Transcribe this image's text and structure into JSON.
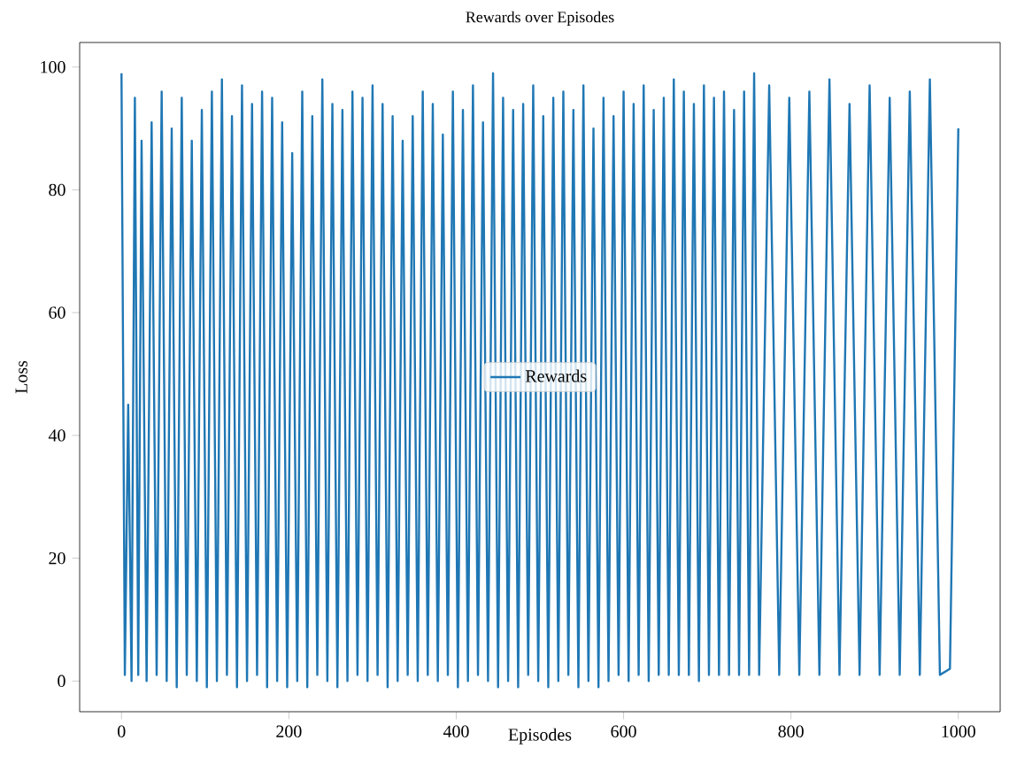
{
  "chart_data": {
    "type": "line",
    "title": "Rewards over Episodes",
    "xlabel": "Episodes",
    "ylabel": "Loss",
    "x": [
      0,
      4,
      8,
      12,
      16,
      20,
      24,
      30,
      36,
      42,
      48,
      54,
      60,
      66,
      72,
      78,
      84,
      90,
      96,
      102,
      108,
      114,
      120,
      126,
      132,
      138,
      144,
      150,
      156,
      162,
      168,
      174,
      180,
      186,
      192,
      198,
      204,
      210,
      216,
      222,
      228,
      234,
      240,
      246,
      252,
      258,
      264,
      270,
      276,
      282,
      288,
      294,
      300,
      306,
      312,
      318,
      324,
      330,
      336,
      342,
      348,
      354,
      360,
      366,
      372,
      378,
      384,
      390,
      396,
      402,
      408,
      414,
      420,
      426,
      432,
      438,
      444,
      450,
      456,
      462,
      468,
      474,
      480,
      486,
      492,
      498,
      504,
      510,
      516,
      522,
      528,
      534,
      540,
      546,
      552,
      558,
      564,
      570,
      576,
      582,
      588,
      594,
      600,
      606,
      612,
      618,
      624,
      630,
      636,
      642,
      648,
      654,
      660,
      666,
      672,
      678,
      684,
      690,
      696,
      702,
      708,
      714,
      720,
      726,
      732,
      738,
      744,
      750,
      756,
      762,
      774,
      786,
      798,
      810,
      822,
      834,
      846,
      858,
      870,
      882,
      894,
      906,
      918,
      930,
      942,
      954,
      966,
      978,
      990,
      1000
    ],
    "series": [
      {
        "name": "Rewards",
        "color": "#1f77b4",
        "values": [
          99,
          1,
          45,
          0,
          95,
          1,
          88,
          0,
          91,
          1,
          96,
          0,
          90,
          -1,
          95,
          1,
          88,
          0,
          93,
          -1,
          96,
          0,
          98,
          1,
          92,
          -1,
          97,
          0,
          94,
          1,
          96,
          -1,
          95,
          0,
          91,
          -1,
          86,
          0,
          96,
          -1,
          92,
          1,
          98,
          0,
          94,
          -1,
          93,
          0,
          96,
          1,
          95,
          0,
          97,
          1,
          94,
          -1,
          92,
          0,
          88,
          1,
          92,
          0,
          96,
          1,
          94,
          0,
          89,
          1,
          96,
          -1,
          93,
          0,
          97,
          1,
          91,
          0,
          99,
          -1,
          95,
          0,
          93,
          -1,
          94,
          1,
          97,
          0,
          92,
          -1,
          95,
          0,
          96,
          1,
          93,
          -1,
          97,
          0,
          90,
          -1,
          95,
          0,
          92,
          1,
          96,
          0,
          94,
          1,
          97,
          0,
          93,
          1,
          95,
          1,
          98,
          1,
          96,
          1,
          94,
          0,
          97,
          1,
          95,
          1,
          96,
          1,
          93,
          1,
          96,
          1,
          99,
          1,
          97,
          1,
          95,
          1,
          96,
          1,
          98,
          1,
          94,
          1,
          97,
          1,
          95,
          1,
          96,
          1,
          98,
          1,
          2,
          90
        ]
      }
    ],
    "xlim": [
      -50,
      1050
    ],
    "ylim": [
      -5,
      104
    ],
    "xticks": [
      0,
      200,
      400,
      600,
      800,
      1000
    ],
    "yticks": [
      0,
      20,
      40,
      60,
      80,
      100
    ],
    "legend": "center",
    "grid": false,
    "marker": "none",
    "line_style": "solid"
  }
}
